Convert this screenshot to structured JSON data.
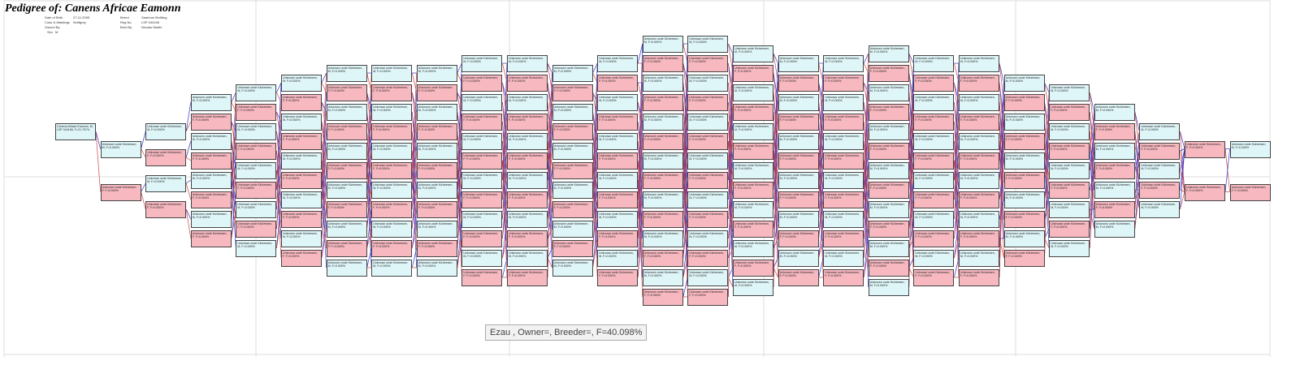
{
  "title": "Pedigree of: Canens Africae Eamonn",
  "meta": {
    "dob_label": "Date of Birth",
    "dob": "27-11-2005",
    "color_label": "Color & Markings",
    "color": "Wolfgrey",
    "owned_label": "Owned By",
    "owned": "",
    "sex_label": "Sex",
    "sex": "M",
    "breed_label": "Breed",
    "breed": "Saarloos Wolfdog",
    "reg_label": "Reg No",
    "reg": "LSP 044156",
    "bred_label": "Bred By",
    "bred": "Nicolas Martin"
  },
  "tooltip": "Ezau , Owner=, Breeder=, F=40.098%",
  "colors": {
    "male": "#dff6f8",
    "female": "#f7b8c0",
    "sire_line": "#3333cc",
    "dam_line": "#cc4444"
  },
  "root": {
    "name": "Canens Africae Eamonn",
    "sex": "M",
    "detail": "LSP 044156, F=21.797%"
  },
  "column_sexes": [
    "M",
    "MF",
    "MFMF",
    "MFMFMFMF",
    "MFMFMFMFM",
    "MFMFMFMFMF",
    "MFMFMFMFMFM",
    "MFMFMFMFMFM",
    "MFMFMFMFMFM",
    "MFMFMFMFMFMF",
    "MFMFMFMFMFMF",
    "MFMFMFMFMFM",
    "MFMFMFMFMFMF",
    "MFMFMFMFMFMFMF",
    "MFMFMFMFMFMFMF",
    "MFMFMFMFMFMFM",
    "MFMFMFMFMFMF",
    "MFMFMFMFMFMF",
    "MFMFMFMFMFMFM",
    "MFMFMFMFMFMF",
    "MFMFMFMFMFMF",
    "MFMFMFMFMF",
    "MFMFMFMFM",
    "MFMFMFM",
    "MFMFM",
    "FF",
    "MF"
  ],
  "unknown_name": "Unknown unde Kicheesen",
  "unknown_detail": "F=0.000%"
}
